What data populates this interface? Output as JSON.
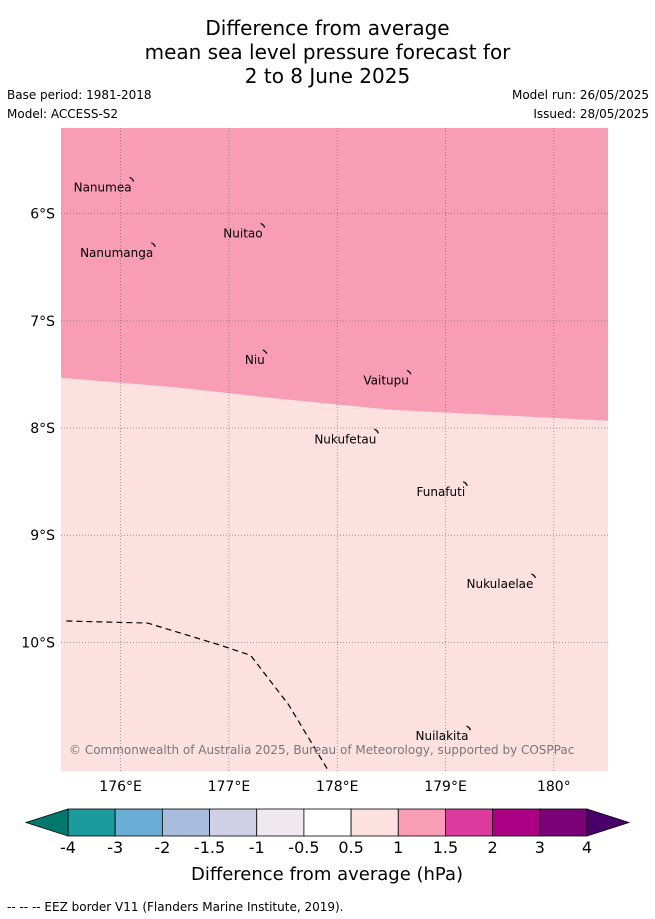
{
  "header": {
    "title_lines": [
      "Difference from average",
      "mean sea level pressure forecast for",
      "2 to 8 June 2025"
    ],
    "base_period": "Base period: 1981-2018",
    "model": "Model: ACCESS-S2",
    "model_run": "Model run: 26/05/2025",
    "issued": "Issued: 28/05/2025"
  },
  "map": {
    "lon_range": [
      175.45,
      180.5
    ],
    "lat_range": [
      -11.2,
      -5.2
    ],
    "lon_ticks": [
      "176°E",
      "177°E",
      "178°E",
      "179°E",
      "180°"
    ],
    "lon_tick_values": [
      176,
      177,
      178,
      179,
      180
    ],
    "lat_ticks": [
      "6°S",
      "7°S",
      "8°S",
      "9°S",
      "10°S"
    ],
    "lat_tick_values": [
      -6,
      -7,
      -8,
      -9,
      -10
    ],
    "shading": [
      {
        "range": "1 to 1.5",
        "color": "#f99db6",
        "description": "northern area"
      },
      {
        "range": "0.5 to 1",
        "color": "#fde0e0",
        "description": "southern area"
      }
    ],
    "boundary_1_hpa_points": [
      [
        175.45,
        -7.53
      ],
      [
        176.5,
        -7.62
      ],
      [
        177.5,
        -7.73
      ],
      [
        178.5,
        -7.83
      ],
      [
        179.5,
        -7.88
      ],
      [
        180.5,
        -7.93
      ]
    ],
    "eez_border_points": [
      [
        175.5,
        -9.8
      ],
      [
        176.25,
        -9.82
      ],
      [
        176.9,
        -10.02
      ],
      [
        177.2,
        -10.12
      ],
      [
        177.55,
        -10.58
      ],
      [
        177.95,
        -11.25
      ]
    ],
    "islands": [
      {
        "name": "Nanumea",
        "lon": 176.12,
        "lat": -5.68
      },
      {
        "name": "Nuitao",
        "lon": 177.33,
        "lat": -6.11
      },
      {
        "name": "Nanumanga",
        "lon": 176.32,
        "lat": -6.29
      },
      {
        "name": "Niu",
        "lon": 177.35,
        "lat": -7.29
      },
      {
        "name": "Vaitupu",
        "lon": 178.68,
        "lat": -7.48
      },
      {
        "name": "Nukufetau",
        "lon": 178.38,
        "lat": -8.03
      },
      {
        "name": "Funafuti",
        "lon": 179.2,
        "lat": -8.52
      },
      {
        "name": "Nukulaelae",
        "lon": 179.83,
        "lat": -9.38
      },
      {
        "name": "Nuilakita",
        "lon": 179.23,
        "lat": -10.8
      }
    ],
    "copyright": "© Commonwealth of Australia 2025, Bureau of Meteorology, supported by COSPPac"
  },
  "colorbar": {
    "labels": [
      "-4",
      "-3",
      "-2",
      "-1.5",
      "-1",
      "-0.5",
      "0.5",
      "1",
      "1.5",
      "2",
      "3",
      "4"
    ],
    "colors": [
      "#1a9a9a",
      "#6aaed6",
      "#a8bcdd",
      "#d0d1e6",
      "#f0e8ef",
      "#ffffff",
      "#fde0e0",
      "#f99db6",
      "#dc3a9e",
      "#ab0085",
      "#7a0177"
    ],
    "under_color": "#00786e",
    "over_color": "#49006a",
    "label": "Difference from average (hPa)"
  },
  "footnote": "-- -- -- EEZ border V11 (Flanders Marine Institute, 2019)."
}
